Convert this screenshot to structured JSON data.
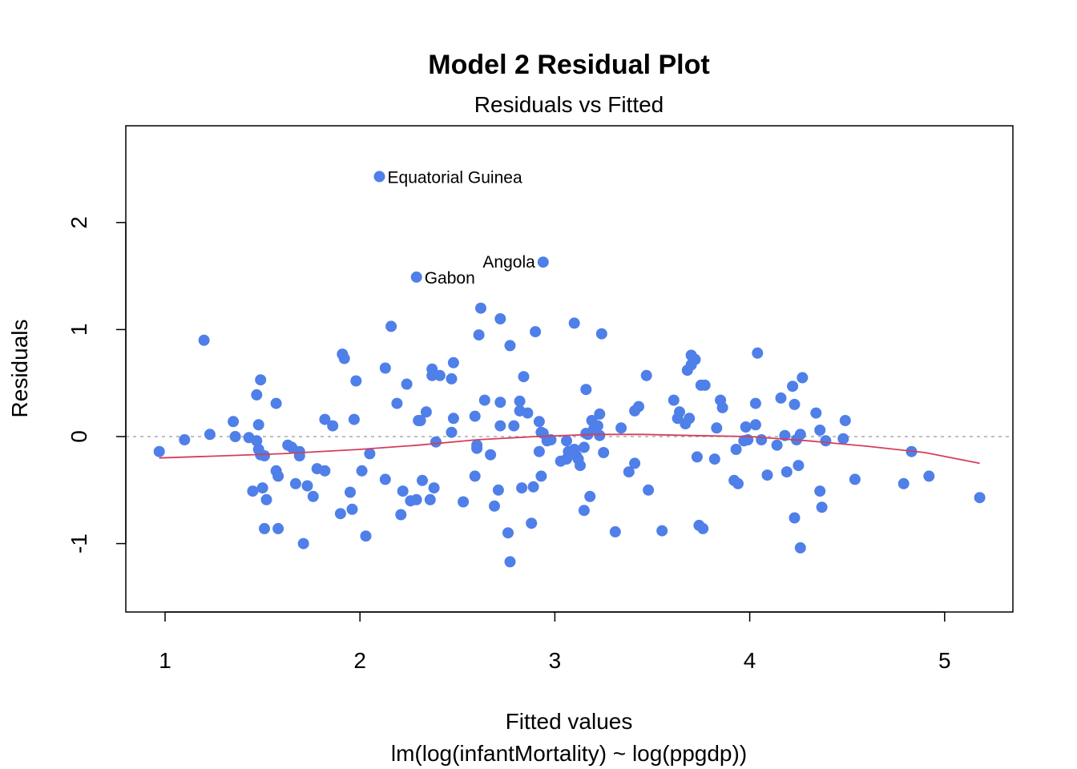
{
  "chart_data": {
    "type": "scatter",
    "title": "Model 2 Residual Plot",
    "subtitle": "Residuals vs Fitted",
    "xlabel": "Fitted values",
    "xlabel_sub": "lm(log(infantMortality) ~ log(ppgdp))",
    "ylabel": "Residuals",
    "xlim": [
      0.8,
      5.35
    ],
    "ylim": [
      -1.65,
      2.9
    ],
    "xticks": [
      1,
      2,
      3,
      4,
      5
    ],
    "yticks": [
      -1,
      0,
      1,
      2
    ],
    "reference_line": 0,
    "point_color": "#4F7FE8",
    "smooth_color": "#D43F5A",
    "reference_color": "#AAAAAA",
    "labeled_points": [
      {
        "label": "Equatorial Guinea",
        "x": 2.1,
        "y": 2.43
      },
      {
        "label": "Gabon",
        "x": 2.29,
        "y": 1.49
      },
      {
        "label": "Angola",
        "x": 2.94,
        "y": 1.63
      }
    ],
    "points": [
      [
        0.97,
        -0.14
      ],
      [
        1.1,
        -0.03
      ],
      [
        1.2,
        0.9
      ],
      [
        1.23,
        0.02
      ],
      [
        1.35,
        0.14
      ],
      [
        1.36,
        0.0
      ],
      [
        1.43,
        -0.01
      ],
      [
        1.45,
        -0.51
      ],
      [
        1.47,
        0.39
      ],
      [
        1.47,
        -0.04
      ],
      [
        1.48,
        0.11
      ],
      [
        1.48,
        -0.12
      ],
      [
        1.49,
        0.53
      ],
      [
        1.49,
        -0.17
      ],
      [
        1.5,
        -0.48
      ],
      [
        1.51,
        -0.18
      ],
      [
        1.51,
        -0.86
      ],
      [
        1.52,
        -0.59
      ],
      [
        1.57,
        0.31
      ],
      [
        1.57,
        -0.32
      ],
      [
        1.58,
        -0.37
      ],
      [
        1.58,
        -0.86
      ],
      [
        1.63,
        -0.08
      ],
      [
        1.65,
        -0.1
      ],
      [
        1.67,
        -0.44
      ],
      [
        1.69,
        -0.14
      ],
      [
        1.69,
        -0.18
      ],
      [
        1.71,
        -1.0
      ],
      [
        1.73,
        -0.46
      ],
      [
        1.76,
        -0.56
      ],
      [
        1.78,
        -0.3
      ],
      [
        1.82,
        0.16
      ],
      [
        1.82,
        -0.32
      ],
      [
        1.86,
        0.1
      ],
      [
        1.9,
        -0.72
      ],
      [
        1.91,
        0.77
      ],
      [
        1.92,
        0.73
      ],
      [
        1.95,
        -0.52
      ],
      [
        1.96,
        -0.68
      ],
      [
        1.97,
        0.16
      ],
      [
        1.98,
        0.52
      ],
      [
        2.01,
        -0.32
      ],
      [
        2.03,
        -0.93
      ],
      [
        2.05,
        -0.16
      ],
      [
        2.13,
        0.64
      ],
      [
        2.13,
        -0.4
      ],
      [
        2.16,
        1.03
      ],
      [
        2.19,
        0.31
      ],
      [
        2.21,
        -0.73
      ],
      [
        2.22,
        -0.51
      ],
      [
        2.24,
        0.49
      ],
      [
        2.26,
        -0.6
      ],
      [
        2.29,
        -0.59
      ],
      [
        2.3,
        0.15
      ],
      [
        2.31,
        0.15
      ],
      [
        2.32,
        -0.41
      ],
      [
        2.34,
        0.23
      ],
      [
        2.36,
        -0.59
      ],
      [
        2.37,
        0.63
      ],
      [
        2.37,
        0.57
      ],
      [
        2.38,
        -0.48
      ],
      [
        2.39,
        -0.05
      ],
      [
        2.41,
        0.57
      ],
      [
        2.47,
        0.54
      ],
      [
        2.47,
        0.04
      ],
      [
        2.48,
        0.69
      ],
      [
        2.48,
        0.17
      ],
      [
        2.53,
        -0.61
      ],
      [
        2.59,
        0.19
      ],
      [
        2.59,
        -0.37
      ],
      [
        2.6,
        -0.08
      ],
      [
        2.6,
        -0.11
      ],
      [
        2.61,
        0.95
      ],
      [
        2.62,
        1.2
      ],
      [
        2.64,
        0.34
      ],
      [
        2.67,
        -0.17
      ],
      [
        2.69,
        -0.65
      ],
      [
        2.71,
        -0.5
      ],
      [
        2.72,
        1.1
      ],
      [
        2.72,
        0.32
      ],
      [
        2.72,
        0.1
      ],
      [
        2.76,
        -0.9
      ],
      [
        2.77,
        -1.17
      ],
      [
        2.77,
        0.85
      ],
      [
        2.79,
        0.1
      ],
      [
        2.82,
        0.33
      ],
      [
        2.82,
        0.24
      ],
      [
        2.83,
        -0.48
      ],
      [
        2.84,
        0.56
      ],
      [
        2.86,
        0.22
      ],
      [
        2.88,
        -0.81
      ],
      [
        2.89,
        -0.47
      ],
      [
        2.9,
        0.98
      ],
      [
        2.92,
        0.14
      ],
      [
        2.92,
        -0.14
      ],
      [
        2.93,
        -0.37
      ],
      [
        2.93,
        0.04
      ],
      [
        2.94,
        0.03
      ],
      [
        2.96,
        -0.04
      ],
      [
        2.98,
        -0.03
      ],
      [
        3.03,
        -0.23
      ],
      [
        3.06,
        -0.21
      ],
      [
        3.06,
        -0.04
      ],
      [
        3.07,
        -0.14
      ],
      [
        3.09,
        -0.15
      ],
      [
        3.1,
        1.06
      ],
      [
        3.1,
        -0.12
      ],
      [
        3.11,
        -0.18
      ],
      [
        3.12,
        -0.21
      ],
      [
        3.13,
        -0.27
      ],
      [
        3.15,
        -0.1
      ],
      [
        3.15,
        -0.69
      ],
      [
        3.16,
        0.03
      ],
      [
        3.16,
        0.44
      ],
      [
        3.17,
        0.02
      ],
      [
        3.18,
        -0.56
      ],
      [
        3.19,
        0.15
      ],
      [
        3.2,
        0.07
      ],
      [
        3.22,
        0.1
      ],
      [
        3.23,
        0.01
      ],
      [
        3.23,
        0.21
      ],
      [
        3.24,
        0.96
      ],
      [
        3.25,
        -0.15
      ],
      [
        3.31,
        -0.89
      ],
      [
        3.34,
        0.08
      ],
      [
        3.38,
        -0.33
      ],
      [
        3.41,
        -0.25
      ],
      [
        3.41,
        0.24
      ],
      [
        3.43,
        0.28
      ],
      [
        3.47,
        0.57
      ],
      [
        3.48,
        -0.5
      ],
      [
        3.55,
        -0.88
      ],
      [
        3.61,
        0.34
      ],
      [
        3.63,
        0.17
      ],
      [
        3.64,
        0.23
      ],
      [
        3.67,
        0.12
      ],
      [
        3.68,
        0.62
      ],
      [
        3.69,
        0.17
      ],
      [
        3.7,
        0.67
      ],
      [
        3.7,
        0.76
      ],
      [
        3.72,
        0.72
      ],
      [
        3.73,
        -0.19
      ],
      [
        3.74,
        -0.83
      ],
      [
        3.75,
        0.48
      ],
      [
        3.76,
        -0.86
      ],
      [
        3.77,
        0.48
      ],
      [
        3.82,
        -0.21
      ],
      [
        3.83,
        0.08
      ],
      [
        3.85,
        0.34
      ],
      [
        3.86,
        0.27
      ],
      [
        3.92,
        -0.41
      ],
      [
        3.93,
        -0.12
      ],
      [
        3.94,
        -0.44
      ],
      [
        3.97,
        -0.04
      ],
      [
        3.98,
        0.09
      ],
      [
        3.99,
        -0.03
      ],
      [
        4.03,
        0.31
      ],
      [
        4.03,
        0.11
      ],
      [
        4.04,
        0.78
      ],
      [
        4.06,
        -0.03
      ],
      [
        4.09,
        -0.36
      ],
      [
        4.14,
        -0.08
      ],
      [
        4.16,
        0.36
      ],
      [
        4.18,
        0.01
      ],
      [
        4.19,
        -0.33
      ],
      [
        4.22,
        0.47
      ],
      [
        4.23,
        0.3
      ],
      [
        4.23,
        -0.76
      ],
      [
        4.24,
        -0.03
      ],
      [
        4.25,
        -0.27
      ],
      [
        4.26,
        0.02
      ],
      [
        4.26,
        -1.04
      ],
      [
        4.27,
        0.55
      ],
      [
        4.34,
        0.22
      ],
      [
        4.36,
        0.06
      ],
      [
        4.36,
        -0.51
      ],
      [
        4.37,
        -0.66
      ],
      [
        4.39,
        -0.04
      ],
      [
        4.48,
        -0.02
      ],
      [
        4.49,
        0.15
      ],
      [
        4.54,
        -0.4
      ],
      [
        4.79,
        -0.44
      ],
      [
        4.83,
        -0.14
      ],
      [
        4.92,
        -0.37
      ],
      [
        5.18,
        -0.57
      ]
    ],
    "smooth": [
      [
        0.97,
        -0.2
      ],
      [
        1.3,
        -0.18
      ],
      [
        1.6,
        -0.16
      ],
      [
        2.0,
        -0.12
      ],
      [
        2.3,
        -0.08
      ],
      [
        2.6,
        -0.03
      ],
      [
        2.9,
        0.0
      ],
      [
        3.2,
        0.02
      ],
      [
        3.45,
        0.02
      ],
      [
        3.7,
        0.01
      ],
      [
        4.0,
        0.0
      ],
      [
        4.3,
        -0.04
      ],
      [
        4.6,
        -0.09
      ],
      [
        4.9,
        -0.15
      ],
      [
        5.18,
        -0.25
      ]
    ]
  }
}
